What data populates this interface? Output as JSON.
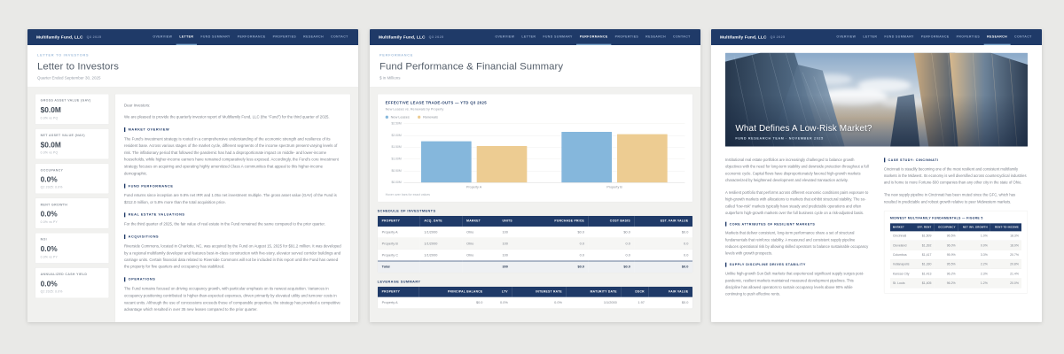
{
  "brand": {
    "name": "Multifamily Fund, LLC",
    "quarter": "Q3 2025"
  },
  "nav": {
    "items": [
      "OVERVIEW",
      "LETTER",
      "FUND SUMMARY",
      "PERFORMANCE",
      "PROPERTIES",
      "RESEARCH",
      "CONTACT"
    ]
  },
  "colors": {
    "navy": "#1f3a68",
    "accent_underline": "#7fa8cc",
    "chart_blue": "#85b7dc",
    "chart_tan": "#edcc92"
  },
  "letter_page": {
    "active_nav": "LETTER",
    "breadcrumb": "LETTER TO INVESTORS",
    "title": "Letter to Investors",
    "subtitle": "Quarter Ended September 30, 2025",
    "stats": [
      {
        "label": "GROSS ASSET VALUE (GAV)",
        "value": "$0.0M",
        "sub": "0.0% vs PQ"
      },
      {
        "label": "NET ASSET VALUE (NAV)",
        "value": "$0.0M",
        "sub": "0.0% vs PQ"
      },
      {
        "label": "OCCUPANCY",
        "value": "0.0%",
        "sub": "Q2 2025: 0.0%"
      },
      {
        "label": "RENT GROWTH",
        "value": "0.0%",
        "sub": "0.0% vs PY"
      },
      {
        "label": "NOI",
        "value": "0.0%",
        "sub": "0.0% vs PY"
      },
      {
        "label": "ANNUALIZED CASH YIELD",
        "value": "0.0%",
        "sub": "Q2 2025: 0.0%"
      }
    ],
    "salutation": "Dear Investors:",
    "intro": "We are pleased to provide the quarterly investor report of Multifamily Fund, LLC (the “Fund”) for the third quarter of 2025.",
    "sections": [
      {
        "heading": "MARKET OVERVIEW",
        "body": "The Fund's investment strategy is rooted in a comprehensive understanding of the economic strength and resilience of its resident base. Across various stages of the market cycle, different segments of the income spectrum present varying levels of risk. The inflationary period that followed the pandemic has had a disproportionate impact on middle- and lower-income households, while higher-income earners have remained comparatively less exposed. Accordingly, the Fund's core investment strategy focuses on acquiring and operating highly amenitized Class A communities that appeal to this higher-income demographic."
      },
      {
        "heading": "FUND PERFORMANCE",
        "body": "Fund returns since inception are 9.8% net IRR and 1.05x net investment multiple. The gross asset value (GAV) of the Fund is $312.0 million, or 5.8% more than the total acquisition price."
      },
      {
        "heading": "REAL ESTATE VALUATIONS",
        "body": "For the third quarter of 2025, the fair value of real estate in the Fund remained the same compared to the prior quarter."
      },
      {
        "heading": "ACQUISITIONS",
        "body": "Riverside Commons, located in Charlotte, NC, was acquired by the Fund on August 15, 2025 for $91.2 million. It was developed by a regional multifamily developer and features best-in-class construction with five-story, elevator served corridor buildings and carriage units. Certain financial data related to Riverside Commons will not be included in this report until the Fund has owned the property for five quarters and occupancy has stabilized."
      },
      {
        "heading": "OPERATIONS",
        "body": "The Fund remains focused on driving occupancy growth, with particular emphasis on its newest acquisition. Variances in occupancy positioning contributed to higher-than-expected expenses, driven primarily by elevated utility and turnover costs in vacant units. Although the use of concessions exceeds those of comparable properties, the strategy has provided a competitive advantage which resulted in over 35 new leases compared to the prior quarter."
      }
    ]
  },
  "performance_page": {
    "active_nav": "PERFORMANCE",
    "breadcrumb": "PERFORMANCE",
    "title": "Fund Performance & Financial Summary",
    "subtitle": "$ in Millions",
    "schedule": {
      "label": "SCHEDULE OF INVESTMENTS",
      "headers": [
        "PROPERTY",
        "ACQ. DATE",
        "MARKET",
        "UNITS",
        "PURCHASE PRICE",
        "COST BASIS",
        "EST. FAIR VALUE"
      ],
      "rows": [
        [
          "Property A",
          "1/1/2000",
          "Ohio",
          "100",
          "$0.0",
          "$0.0",
          "$0.0"
        ],
        [
          "Property B",
          "1/1/2000",
          "Ohio",
          "100",
          "0.0",
          "0.0",
          "0.0"
        ],
        [
          "Property C",
          "1/1/2000",
          "Ohio",
          "100",
          "0.0",
          "0.0",
          "0.0"
        ]
      ],
      "total_row": [
        "Total",
        "",
        "",
        "300",
        "$0.0",
        "$0.0",
        "$0.0"
      ]
    },
    "leverage": {
      "label": "LEVERAGE SUMMARY",
      "headers": [
        "PROPERTY",
        "PRINCIPAL BALANCE",
        "LTV",
        "INTEREST RATE",
        "MATURITY DATE",
        "DSCR",
        "FAIR VALUE"
      ],
      "rows": [
        [
          "Property A",
          "$0.0",
          "0.0%",
          "0.0%",
          "1/1/2000",
          "1.97",
          "$0.0"
        ]
      ]
    }
  },
  "chart_data": {
    "type": "bar",
    "title": "EFFECTIVE LEASE TRADE-OUTS — YTD Q3 2025",
    "subtitle": "New Leases vs. Renewals by Property",
    "categories": [
      "Property A",
      "Property B"
    ],
    "series": [
      {
        "name": "New Leases",
        "color": "#85b7dc",
        "values": [
          1.75,
          2.15
        ]
      },
      {
        "name": "Renewals",
        "color": "#edcc92",
        "values": [
          1.55,
          2.05
        ]
      }
    ],
    "ylabel": "$ (Millions)",
    "ylim": [
      0,
      2.5
    ],
    "yticks": [
      "$2.50M",
      "$2.00M",
      "$1.50M",
      "$1.00M",
      "$0.50M",
      "$0.00M"
    ],
    "grid": true,
    "legend_position": "top-left",
    "footnote": "Hover over bars for exact values"
  },
  "research_page": {
    "active_nav": "RESEARCH",
    "hero_title": "What Defines A Low-Risk Market?",
    "hero_byline": "FUND RESEARCH TEAM · NOVEMBER 2025",
    "left_paragraphs": [
      "Institutional real estate portfolios are increasingly challenged to balance growth objectives with the need for long-term stability and downside protection throughout a full economic cycle. Capital flows have disproportionately favored high-growth markets characterized by heightened development and elevated transaction activity.",
      "A resilient portfolio that performs across different economic conditions pairs exposure to high-growth markets with allocations to markets that exhibit structural stability. The so-called “low-risk” markets typically have steady and predictable operations and often outperform high-growth markets over the full business cycle on a risk-adjusted basis."
    ],
    "left_sections": [
      {
        "heading": "CORE ATTRIBUTES OF RESILIENT MARKETS",
        "body": "Markets that deliver consistent, long-term performance share a set of structural fundamentals that reinforce stability. A measured and consistent supply pipeline reduces operational risk by allowing skilled operators to balance sustainable occupancy levels with growth prospects."
      },
      {
        "heading": "SUPPLY DISCIPLINE DRIVES STABILITY",
        "body": "Unlike high-growth Sun Belt markets that experienced significant supply surges post-pandemic, resilient markets maintained measured development pipelines. This discipline has allowed operators to sustain occupancy levels above 90% while continuing to push effective rents."
      }
    ],
    "case_study": {
      "heading": "CASE STUDY: CINCINNATI",
      "paragraphs": [
        "Cincinnati is steadily becoming one of the most resilient and consistent multifamily markets in the Midwest. Its economy is well diversified across countercyclical industries and is home to more Fortune-500 companies than any other city in the state of Ohio.",
        "The new supply pipeline in Cincinnati has been muted since the GFC, which has resulted in predictable and robust growth relative to peer Midwestern markets."
      ]
    },
    "figure": {
      "title": "MIDWEST MULTIFAMILY FUNDAMENTALS — FIGURE 5",
      "headers": [
        "MARKET",
        "EFF. RENT",
        "OCCUPANCY",
        "NET INV. GROWTH",
        "RENT-TO-INCOME"
      ],
      "rows": [
        [
          "Cincinnati",
          "$1,509",
          "96.5%",
          "1.0%",
          "18.3%"
        ],
        [
          "Cleveland",
          "$1,392",
          "96.0%",
          "0.9%",
          "18.9%"
        ],
        [
          "Columbus",
          "$1,417",
          "95.9%",
          "3.3%",
          "20.7%"
        ],
        [
          "Indianapolis",
          "$1,330",
          "95.5%",
          "2.2%",
          "20.8%"
        ],
        [
          "Kansas City",
          "$1,413",
          "96.2%",
          "2.3%",
          "21.4%"
        ],
        [
          "St. Louis",
          "$1,405",
          "96.2%",
          "1.2%",
          "20.0%"
        ]
      ]
    }
  }
}
